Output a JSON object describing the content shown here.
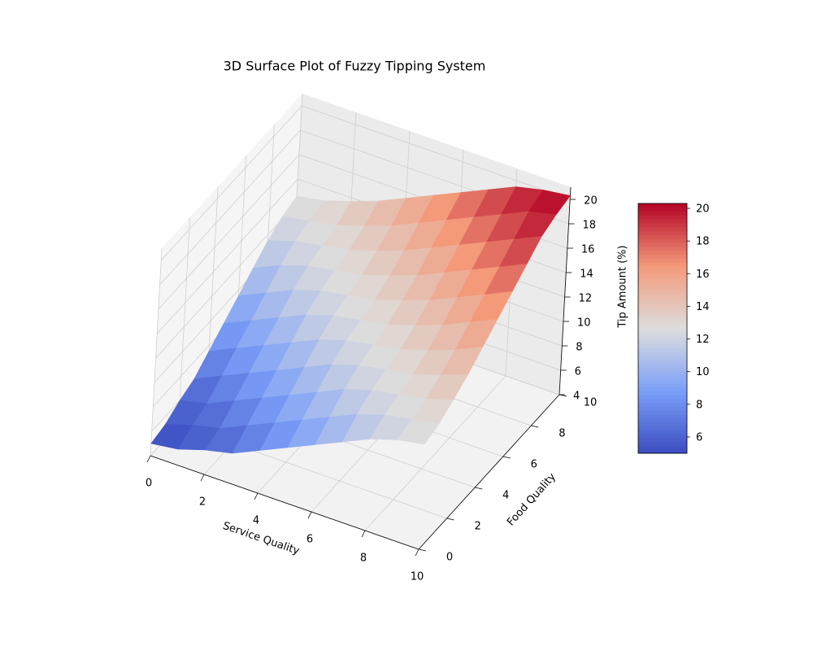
{
  "chart_data": {
    "type": "surface",
    "title": "3D Surface Plot of Fuzzy Tipping System",
    "x_label": "Service Quality",
    "y_label": "Food Quality",
    "z_label": "Tip Amount (%)",
    "x": [
      0,
      1,
      2,
      3,
      4,
      5,
      6,
      7,
      8,
      9,
      10
    ],
    "y": [
      0,
      1,
      2,
      3,
      4,
      5,
      6,
      7,
      8,
      9,
      10
    ],
    "z": [
      [
        5.0,
        5.3,
        6.0,
        6.5,
        7.5,
        8.5,
        9.5,
        10.5,
        11.5,
        12.2,
        12.6
      ],
      [
        5.3,
        6.0,
        6.5,
        7.5,
        8.5,
        9.5,
        10.5,
        11.5,
        12.2,
        12.6,
        13.0
      ],
      [
        6.0,
        6.5,
        7.5,
        8.5,
        9.5,
        10.5,
        11.5,
        12.2,
        12.6,
        13.0,
        13.7
      ],
      [
        6.5,
        7.5,
        8.5,
        9.5,
        10.5,
        11.5,
        12.2,
        12.6,
        13.0,
        13.7,
        14.5
      ],
      [
        7.5,
        8.5,
        9.5,
        10.5,
        11.5,
        12.2,
        12.6,
        13.0,
        13.7,
        14.5,
        15.5
      ],
      [
        8.5,
        9.5,
        10.5,
        11.5,
        12.2,
        12.6,
        13.0,
        13.7,
        14.5,
        15.5,
        16.5
      ],
      [
        9.5,
        10.5,
        11.5,
        12.2,
        12.6,
        13.0,
        13.7,
        14.5,
        15.5,
        16.5,
        17.5
      ],
      [
        10.5,
        11.5,
        12.2,
        12.6,
        13.0,
        13.7,
        14.5,
        15.5,
        16.5,
        17.5,
        18.5
      ],
      [
        11.5,
        12.2,
        12.6,
        13.0,
        13.7,
        14.5,
        15.5,
        16.5,
        17.5,
        18.5,
        19.5
      ],
      [
        12.2,
        12.6,
        13.0,
        13.7,
        14.5,
        15.5,
        16.5,
        17.5,
        18.5,
        19.5,
        20.0
      ],
      [
        12.6,
        13.0,
        13.7,
        14.5,
        15.5,
        16.5,
        17.5,
        18.5,
        19.5,
        20.0,
        20.3
      ]
    ],
    "xlim": [
      0,
      10
    ],
    "ylim": [
      0,
      10
    ],
    "zlim": [
      4,
      21
    ],
    "xticks": [
      0,
      2,
      4,
      6,
      8,
      10
    ],
    "yticks": [
      0,
      2,
      4,
      6,
      8,
      10
    ],
    "zticks": [
      4,
      6,
      8,
      10,
      12,
      14,
      16,
      18,
      20
    ],
    "colorbar_ticks": [
      6,
      8,
      10,
      12,
      14,
      16,
      18,
      20
    ],
    "colormap": "coolwarm",
    "grid": true,
    "colorbar": true
  }
}
